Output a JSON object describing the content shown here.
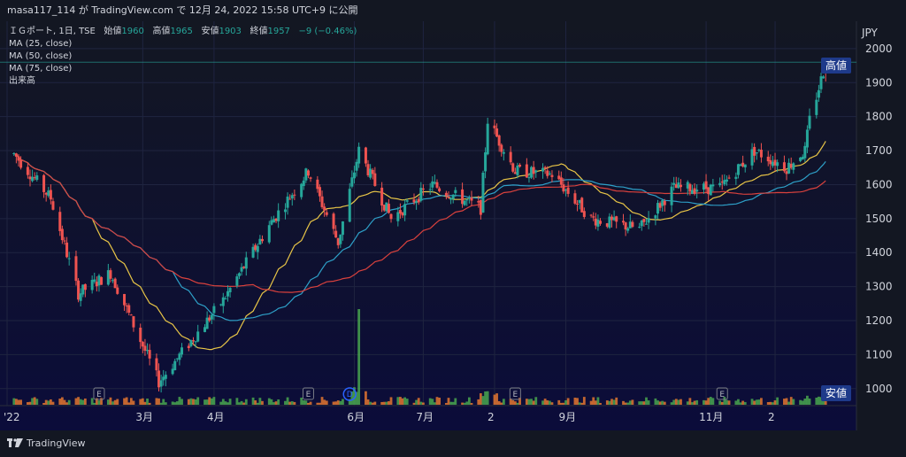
{
  "header": {
    "publish_line": "masa117_114 が TradingView.com で 12月 24, 2022 15:58 UTC+9 に公開"
  },
  "legend": {
    "symbol_line": "ＩＧポート, 1日, TSE",
    "open_label": "始値",
    "open_value": "1960",
    "high_label": "高値",
    "high_value": "1965",
    "low_label": "安値",
    "low_value": "1903",
    "close_label": "終値",
    "close_value": "1957",
    "change": "−9 (−0.46%)",
    "ma25": "MA (25, close)",
    "ma50": "MA (50, close)",
    "ma75": "MA (75, close)",
    "volume": "出来高"
  },
  "axis": {
    "currency": "JPY",
    "y_ticks": [
      "2000",
      "1900",
      "1800",
      "1700",
      "1600",
      "1500",
      "1400",
      "1300",
      "1200",
      "1100",
      "1000"
    ],
    "x_ticks": [
      "'22",
      "3月",
      "4月",
      "6月",
      "7月",
      "2",
      "9月",
      "11月",
      "2"
    ],
    "high_badge": "高値",
    "low_badge": "安値"
  },
  "events": [
    {
      "label": "E"
    },
    {
      "label": "E"
    },
    {
      "label": "D"
    },
    {
      "label": "E"
    },
    {
      "label": "E"
    }
  ],
  "footer": {
    "brand": "TradingView"
  },
  "colors": {
    "background": "#131722",
    "up": "#26a69a",
    "down": "#ef5350",
    "ma25": "#e8c547",
    "ma50": "#2ea0c8",
    "ma75": "#d9413d",
    "badge": "#1e3a8a"
  },
  "chart_data": {
    "type": "candlestick",
    "ylim": [
      950,
      2070
    ],
    "key_points": [
      {
        "date": "2022-01-04",
        "close": 1690
      },
      {
        "date": "2022-01-20",
        "close": 1560
      },
      {
        "date": "2022-02-01",
        "close": 1280
      },
      {
        "date": "2022-02-15",
        "close": 1340
      },
      {
        "date": "2022-03-08",
        "close": 1020
      },
      {
        "date": "2022-03-22",
        "close": 1140
      },
      {
        "date": "2022-04-05",
        "close": 1260
      },
      {
        "date": "2022-04-25",
        "close": 1480
      },
      {
        "date": "2022-05-12",
        "close": 1640
      },
      {
        "date": "2022-05-25",
        "close": 1430
      },
      {
        "date": "2022-06-03",
        "close": 1700
      },
      {
        "date": "2022-06-17",
        "close": 1500
      },
      {
        "date": "2022-07-05",
        "close": 1600
      },
      {
        "date": "2022-07-26",
        "close": 1530
      },
      {
        "date": "2022-07-29",
        "close": 1790
      },
      {
        "date": "2022-08-10",
        "close": 1640
      },
      {
        "date": "2022-08-26",
        "close": 1630
      },
      {
        "date": "2022-09-12",
        "close": 1500
      },
      {
        "date": "2022-10-03",
        "close": 1470
      },
      {
        "date": "2022-10-18",
        "close": 1590
      },
      {
        "date": "2022-11-07",
        "close": 1590
      },
      {
        "date": "2022-11-22",
        "close": 1700
      },
      {
        "date": "2022-12-06",
        "close": 1650
      },
      {
        "date": "2022-12-14",
        "close": 1700
      },
      {
        "date": "2022-12-16",
        "close": 1790
      },
      {
        "date": "2022-12-19",
        "close": 1860
      },
      {
        "date": "2022-12-23",
        "close": 1957
      }
    ],
    "last_bar": {
      "open": 1960,
      "high": 1965,
      "low": 1903,
      "close": 1957
    },
    "volume_spike_date": "2022-06-03",
    "high_line_value": 1960,
    "moving_averages": [
      25,
      50,
      75
    ]
  }
}
